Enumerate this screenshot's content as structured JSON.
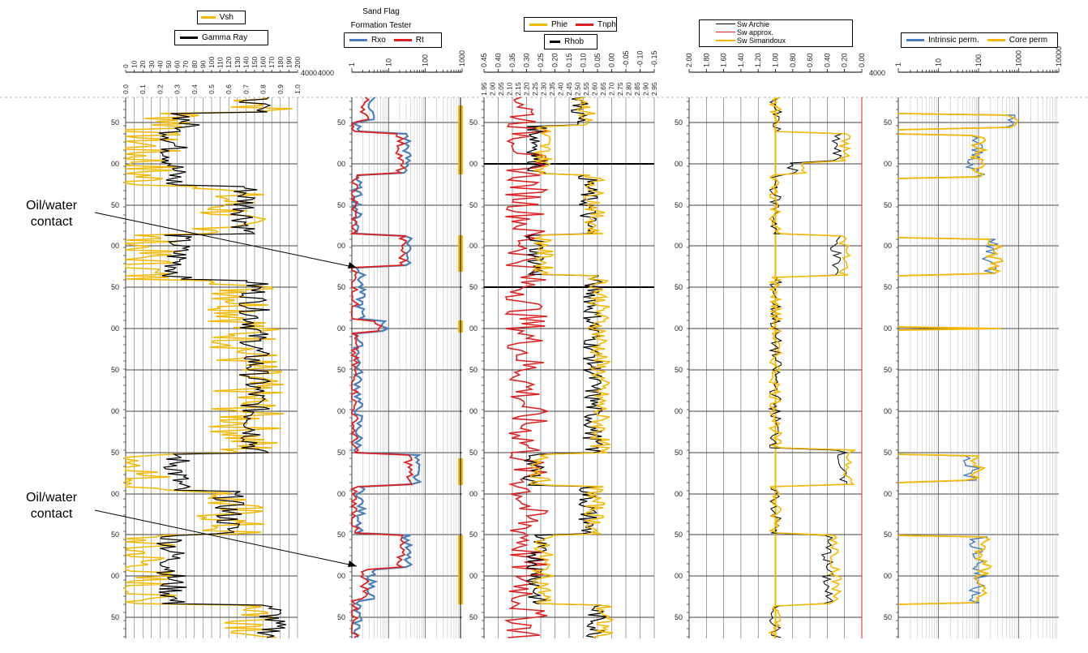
{
  "chart_data": [
    {
      "type": "line",
      "name": "Track 1",
      "legend": [
        "Vsh",
        "Gamma Ray"
      ],
      "series": [
        {
          "name": "Vsh",
          "color": "#f5b800",
          "scale": "vsh"
        },
        {
          "name": "Gamma Ray",
          "color": "#000000",
          "scale": "gr"
        }
      ],
      "scales": {
        "vsh": {
          "range": [
            0.0,
            1.0
          ],
          "ticks": [
            "0.0",
            "0.1",
            "0.2",
            "0.3",
            "0.4",
            "0.5",
            "0.6",
            "0.7",
            "0.8",
            "0.9",
            "1.0"
          ]
        },
        "gr": {
          "range": [
            0,
            200
          ],
          "ticks": [
            "0",
            "10",
            "20",
            "30",
            "40",
            "50",
            "60",
            "70",
            "80",
            "90",
            "100",
            "110",
            "120",
            "130",
            "140",
            "150",
            "160",
            "170",
            "180",
            "190",
            "200"
          ]
        }
      },
      "depth_label": "4000"
    },
    {
      "type": "line",
      "name": "Track 2",
      "title": "Sand Flag\nFormation Tester",
      "legend": [
        "Rxo",
        "Rt"
      ],
      "series": [
        {
          "name": "Rxo",
          "color": "#4a7ebb"
        },
        {
          "name": "Rt",
          "color": "#e02020"
        },
        {
          "name": "Sand Flag",
          "color": "#f5b800"
        }
      ],
      "scale": {
        "type": "log",
        "range": [
          1,
          1000
        ],
        "ticks": [
          "1",
          "10",
          "100",
          "1000"
        ]
      },
      "depth_label": "4000"
    },
    {
      "type": "line",
      "name": "Track 3",
      "legend": [
        "Phie",
        "Tnph",
        "Rhob"
      ],
      "series": [
        {
          "name": "Phie",
          "color": "#f5b800"
        },
        {
          "name": "Tnph",
          "color": "#e02020"
        },
        {
          "name": "Rhob",
          "color": "#000000"
        }
      ],
      "scales": {
        "porosity": {
          "range": [
            0.45,
            -0.15
          ],
          "ticks": [
            "0.45",
            "0.40",
            "0.35",
            "0.30",
            "0.25",
            "0.20",
            "0.15",
            "0.10",
            "0.05",
            "0.00",
            "-0.05",
            "-0.10",
            "-0.15"
          ]
        },
        "density": {
          "range": [
            1.95,
            2.95
          ],
          "ticks": [
            "1.95",
            "2.00",
            "2.05",
            "2.10",
            "2.15",
            "2.20",
            "2.25",
            "2.30",
            "2.35",
            "2.40",
            "2.45",
            "2.50",
            "2.55",
            "2.60",
            "2.65",
            "2.70",
            "2.75",
            "2.80",
            "2.85",
            "2.90",
            "2.95"
          ]
        }
      }
    },
    {
      "type": "line",
      "name": "Track 4",
      "legend": [
        "Sw Archie",
        "Sw approx.",
        "Sw Simandoux"
      ],
      "series": [
        {
          "name": "Sw Archie",
          "color": "#000000"
        },
        {
          "name": "Sw approx.",
          "color": "#e02020"
        },
        {
          "name": "Sw Simandoux",
          "color": "#f5b800"
        }
      ],
      "scale": {
        "range": [
          2.0,
          0.0
        ],
        "ticks": [
          "2.00",
          "1.80",
          "1.60",
          "1.40",
          "1.20",
          "1.00",
          "0.80",
          "0.60",
          "0.40",
          "0.20",
          "0.00"
        ]
      }
    },
    {
      "type": "line",
      "name": "Track 5",
      "legend": [
        "Intrinsic perm.",
        "Core perm"
      ],
      "series": [
        {
          "name": "Intrinsic perm.",
          "color": "#4a7ebb"
        },
        {
          "name": "Core perm",
          "color": "#f5b800"
        }
      ],
      "scale": {
        "type": "log",
        "range": [
          1,
          10000
        ],
        "ticks": [
          "1",
          "10",
          "100",
          "1000",
          "10000"
        ]
      },
      "depth_label": "4000"
    }
  ],
  "depth_ticks": [
    "50",
    "00",
    "50",
    "00",
    "50",
    "00",
    "50",
    "00",
    "50",
    "00",
    "50",
    "00",
    "50"
  ],
  "annotations": [
    {
      "text": "Oil/water\ncontact"
    },
    {
      "text": "Oil/water\ncontact"
    }
  ]
}
